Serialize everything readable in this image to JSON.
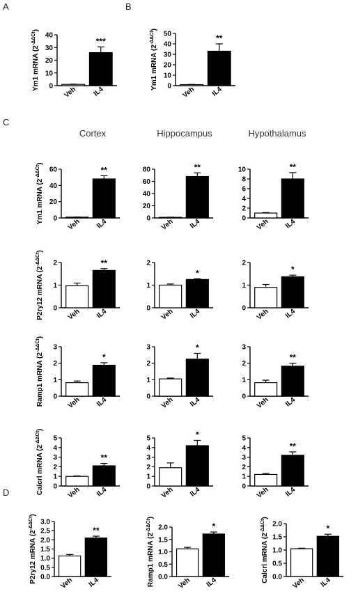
{
  "panel_labels": [
    "A",
    "B",
    "C",
    "D"
  ],
  "column_headers": [
    "Cortex",
    "Hippocampus",
    "Hypothalamus"
  ],
  "categories": [
    "Veh",
    "IL4"
  ],
  "colors": {
    "veh_fill": "#ffffff",
    "il4_fill": "#000000",
    "axis": "#000000"
  },
  "chart_data": [
    {
      "id": "A",
      "type": "bar",
      "gene": "Ym1",
      "ylabel": "Ym1 mRNA (2",
      "ylabel_sup": "-ΔΔCt",
      "ylabel_close": ")",
      "categories": [
        "Veh",
        "IL4"
      ],
      "values": [
        1,
        26
      ],
      "errors": [
        0.2,
        4.5
      ],
      "sig": [
        "",
        "***"
      ],
      "ylim": [
        0,
        40
      ],
      "yticks": [
        "0",
        "10",
        "20",
        "30",
        "40"
      ]
    },
    {
      "id": "B",
      "type": "bar",
      "gene": "Ym1",
      "ylabel": "Ym1 mRNA (2",
      "ylabel_sup": "-ΔΔCt",
      "ylabel_close": ")",
      "categories": [
        "Veh",
        "IL4"
      ],
      "values": [
        1,
        33
      ],
      "errors": [
        0.2,
        7
      ],
      "sig": [
        "",
        "**"
      ],
      "ylim": [
        0,
        50
      ],
      "yticks": [
        "0",
        "10",
        "20",
        "30",
        "40",
        "50"
      ]
    },
    {
      "id": "C-cortex-Ym1",
      "type": "bar",
      "region": "Cortex",
      "gene": "Ym1",
      "ylabel": "Ym1 mRNA (2",
      "ylabel_sup": "-ΔΔCt",
      "ylabel_close": ")",
      "categories": [
        "Veh",
        "IL4"
      ],
      "values": [
        1,
        48
      ],
      "errors": [
        0.2,
        4
      ],
      "sig": [
        "",
        "**"
      ],
      "ylim": [
        0,
        60
      ],
      "yticks": [
        "0",
        "20",
        "40",
        "60"
      ]
    },
    {
      "id": "C-hippocampus-Ym1",
      "type": "bar",
      "region": "Hippocampus",
      "gene": "Ym1",
      "categories": [
        "Veh",
        "IL4"
      ],
      "values": [
        1,
        68
      ],
      "errors": [
        0.3,
        6
      ],
      "sig": [
        "",
        "**"
      ],
      "ylim": [
        0,
        80
      ],
      "yticks": [
        "0",
        "20",
        "40",
        "60",
        "80"
      ]
    },
    {
      "id": "C-hypothalamus-Ym1",
      "type": "bar",
      "region": "Hypothalamus",
      "gene": "Ym1",
      "categories": [
        "Veh",
        "IL4"
      ],
      "values": [
        1,
        8
      ],
      "errors": [
        0.1,
        1.3
      ],
      "sig": [
        "",
        "**"
      ],
      "ylim": [
        0,
        10
      ],
      "yticks": [
        "0",
        "2",
        "4",
        "6",
        "8",
        "10"
      ]
    },
    {
      "id": "C-cortex-P2ry12",
      "type": "bar",
      "region": "Cortex",
      "gene": "P2ry12",
      "ylabel": "P2ry12 mRNA (2",
      "ylabel_sup": "-ΔΔCt",
      "ylabel_close": ")",
      "categories": [
        "Veh",
        "IL4"
      ],
      "values": [
        0.97,
        1.65
      ],
      "errors": [
        0.12,
        0.08
      ],
      "sig": [
        "",
        "**"
      ],
      "ylim": [
        0,
        2
      ],
      "yticks": [
        "0",
        "1",
        "2"
      ]
    },
    {
      "id": "C-hippocampus-P2ry12",
      "type": "bar",
      "region": "Hippocampus",
      "gene": "P2ry12",
      "categories": [
        "Veh",
        "IL4"
      ],
      "values": [
        1.0,
        1.25
      ],
      "errors": [
        0.05,
        0.03
      ],
      "sig": [
        "",
        "*"
      ],
      "ylim": [
        0,
        2
      ],
      "yticks": [
        "0",
        "1",
        "2"
      ]
    },
    {
      "id": "C-hypothalamus-P2ry12",
      "type": "bar",
      "region": "Hypothalamus",
      "gene": "P2ry12",
      "categories": [
        "Veh",
        "IL4"
      ],
      "values": [
        0.9,
        1.37
      ],
      "errors": [
        0.13,
        0.07
      ],
      "sig": [
        "",
        "*"
      ],
      "ylim": [
        0,
        2
      ],
      "yticks": [
        "0",
        "1",
        "2"
      ]
    },
    {
      "id": "C-cortex-Ramp1",
      "type": "bar",
      "region": "Cortex",
      "gene": "Ramp1",
      "ylabel": "Ramp1 mRNA (2",
      "ylabel_sup": "-ΔΔCt",
      "ylabel_close": ")",
      "categories": [
        "Veh",
        "IL4"
      ],
      "values": [
        0.82,
        1.88
      ],
      "errors": [
        0.1,
        0.15
      ],
      "sig": [
        "",
        "*"
      ],
      "ylim": [
        0,
        3
      ],
      "yticks": [
        "0",
        "1",
        "2",
        "3"
      ]
    },
    {
      "id": "C-hippocampus-Ramp1",
      "type": "bar",
      "region": "Hippocampus",
      "gene": "Ramp1",
      "categories": [
        "Veh",
        "IL4"
      ],
      "values": [
        1.05,
        2.25
      ],
      "errors": [
        0.05,
        0.35
      ],
      "sig": [
        "",
        "*"
      ],
      "ylim": [
        0,
        3
      ],
      "yticks": [
        "0",
        "1",
        "2",
        "3"
      ]
    },
    {
      "id": "C-hypothalamus-Ramp1",
      "type": "bar",
      "region": "Hypothalamus",
      "gene": "Ramp1",
      "categories": [
        "Veh",
        "IL4"
      ],
      "values": [
        0.82,
        1.82
      ],
      "errors": [
        0.15,
        0.18
      ],
      "sig": [
        "",
        "**"
      ],
      "ylim": [
        0,
        3
      ],
      "yticks": [
        "0",
        "1",
        "2",
        "3"
      ]
    },
    {
      "id": "C-cortex-Calcrl",
      "type": "bar",
      "region": "Cortex",
      "gene": "Calcrl",
      "ylabel": "Calcrl mRNA (2",
      "ylabel_sup": "-ΔΔCt",
      "ylabel_close": ")",
      "categories": [
        "Veh",
        "IL4"
      ],
      "values": [
        1.0,
        2.1
      ],
      "errors": [
        0.05,
        0.25
      ],
      "sig": [
        "",
        "**"
      ],
      "ylim": [
        0,
        5
      ],
      "yticks": [
        "0",
        "1",
        "2",
        "3",
        "4",
        "5"
      ]
    },
    {
      "id": "C-hippocampus-Calcrl",
      "type": "bar",
      "region": "Hippocampus",
      "gene": "Calcrl",
      "categories": [
        "Veh",
        "IL4"
      ],
      "values": [
        1.9,
        4.2
      ],
      "errors": [
        0.5,
        0.55
      ],
      "sig": [
        "",
        "*"
      ],
      "ylim": [
        0,
        5
      ],
      "yticks": [
        "0",
        "1",
        "2",
        "3",
        "4",
        "5"
      ]
    },
    {
      "id": "C-hypothalamus-Calcrl",
      "type": "bar",
      "region": "Hypothalamus",
      "gene": "Calcrl",
      "categories": [
        "Veh",
        "IL4"
      ],
      "values": [
        1.2,
        3.2
      ],
      "errors": [
        0.1,
        0.35
      ],
      "sig": [
        "",
        "**"
      ],
      "ylim": [
        0,
        5
      ],
      "yticks": [
        "0",
        "1",
        "2",
        "3",
        "4",
        "5"
      ]
    },
    {
      "id": "D-P2ry12",
      "type": "bar",
      "gene": "P2ry12",
      "ylabel": "P2ry12 mRNA (2",
      "ylabel_sup": "-ΔΔCt",
      "ylabel_close": ")",
      "categories": [
        "Veh",
        "IL4"
      ],
      "values": [
        1.12,
        2.1
      ],
      "errors": [
        0.08,
        0.1
      ],
      "sig": [
        "",
        "**"
      ],
      "ylim": [
        0,
        3.0
      ],
      "yticks": [
        "0.0",
        "0.5",
        "1.0",
        "1.5",
        "2.0",
        "2.5",
        "3.0"
      ]
    },
    {
      "id": "D-Ramp1",
      "type": "bar",
      "gene": "Ramp1",
      "ylabel": "Ramp1 mRNA (2",
      "ylabel_sup": "-ΔΔCt",
      "ylabel_close": ")",
      "categories": [
        "Veh",
        "IL4"
      ],
      "values": [
        1.12,
        1.72
      ],
      "errors": [
        0.06,
        0.08
      ],
      "sig": [
        "",
        "*"
      ],
      "ylim": [
        0,
        2.0
      ],
      "yticks": [
        "0.0",
        "0.5",
        "1.0",
        "1.5",
        "2.0"
      ]
    },
    {
      "id": "D-Calcrl",
      "type": "bar",
      "gene": "Calcrl",
      "ylabel": "Calcrl mRNA (2",
      "ylabel_sup": "-ΔΔCt",
      "ylabel_close": ")",
      "categories": [
        "Veh",
        "IL4"
      ],
      "values": [
        1.05,
        1.52
      ],
      "errors": [
        0.02,
        0.08
      ],
      "sig": [
        "",
        "*"
      ],
      "ylim": [
        0,
        2.0
      ],
      "yticks": [
        "0.0",
        "0.5",
        "1.0",
        "1.5",
        "2.0"
      ]
    }
  ]
}
